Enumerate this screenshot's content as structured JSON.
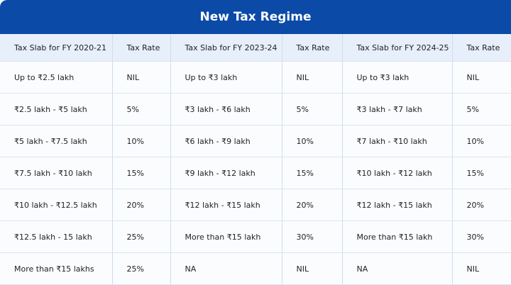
{
  "title": "New Tax Regime",
  "headers": [
    "Tax Slab for FY 2020-21",
    "Tax Rate",
    "Tax Slab for FY 2023-24",
    "Tax Rate",
    "Tax Slab for FY 2024-25",
    "Tax Rate"
  ],
  "rows": [
    [
      "Up to ₹2.5 lakh",
      "NIL",
      "Up to ₹3 lakh",
      "NIL",
      "Up to ₹3 lakh",
      "NIL"
    ],
    [
      "₹2.5 lakh - ₹5 lakh",
      "5%",
      "₹3 lakh - ₹6 lakh",
      "5%",
      "₹3 lakh - ₹7 lakh",
      "5%"
    ],
    [
      "₹5 lakh - ₹7.5 lakh",
      "10%",
      "₹6 lakh - ₹9 lakh",
      "10%",
      "₹7 lakh - ₹10 lakh",
      "10%"
    ],
    [
      "₹7.5 lakh - ₹10 lakh",
      "15%",
      "₹9 lakh - ₹12 lakh",
      "15%",
      "₹10 lakh - ₹12 lakh",
      "15%"
    ],
    [
      "₹10 lakh - ₹12.5 lakh",
      "20%",
      "₹12 lakh - ₹15 lakh",
      "20%",
      "₹12 lakh - ₹15 lakh",
      "20%"
    ],
    [
      "₹12.5 lakh - 15 lakh",
      "25%",
      "More than ₹15 lakh",
      "30%",
      "More than ₹15 lakh",
      "30%"
    ],
    [
      "More than ₹15 lakhs",
      "25%",
      "NA",
      "NIL",
      "NA",
      "NIL"
    ]
  ],
  "colors": {
    "banner": "#0b4aa6",
    "header_row": "#e7effb"
  }
}
